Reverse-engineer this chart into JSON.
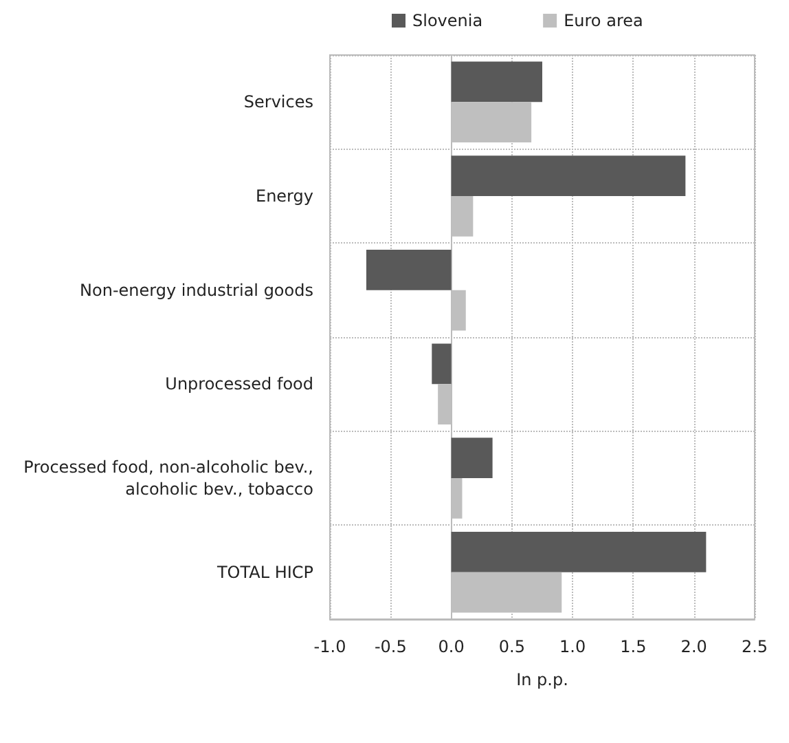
{
  "chart_data": {
    "type": "bar",
    "orientation": "horizontal",
    "xlabel": "In p.p.",
    "categories": [
      "Services",
      "Energy",
      "Non-energy industrial goods",
      "Unprocessed food",
      "Processed food, non-alcoholic bev., alcoholic bev., tobacco",
      "TOTAL HICP"
    ],
    "series": [
      {
        "name": "Slovenia",
        "color": "#595959",
        "values": [
          0.75,
          1.93,
          -0.7,
          -0.16,
          0.34,
          2.1
        ]
      },
      {
        "name": "Euro area",
        "color": "#bfbfbf",
        "values": [
          0.66,
          0.18,
          0.12,
          -0.11,
          0.09,
          0.91
        ]
      }
    ],
    "xlim": [
      -1.0,
      2.5
    ],
    "xticks": [
      {
        "value": -1,
        "label": "-1.0"
      },
      {
        "value": -0.5,
        "label": "-0.5"
      },
      {
        "value": 0,
        "label": "0.0"
      },
      {
        "value": 0.5,
        "label": "0.5"
      },
      {
        "value": 1,
        "label": "1.0"
      },
      {
        "value": 1.5,
        "label": "1.5"
      },
      {
        "value": 2,
        "label": "2.0"
      },
      {
        "value": 2.5,
        "label": "2.5"
      }
    ],
    "grid": true,
    "legend": "top"
  }
}
